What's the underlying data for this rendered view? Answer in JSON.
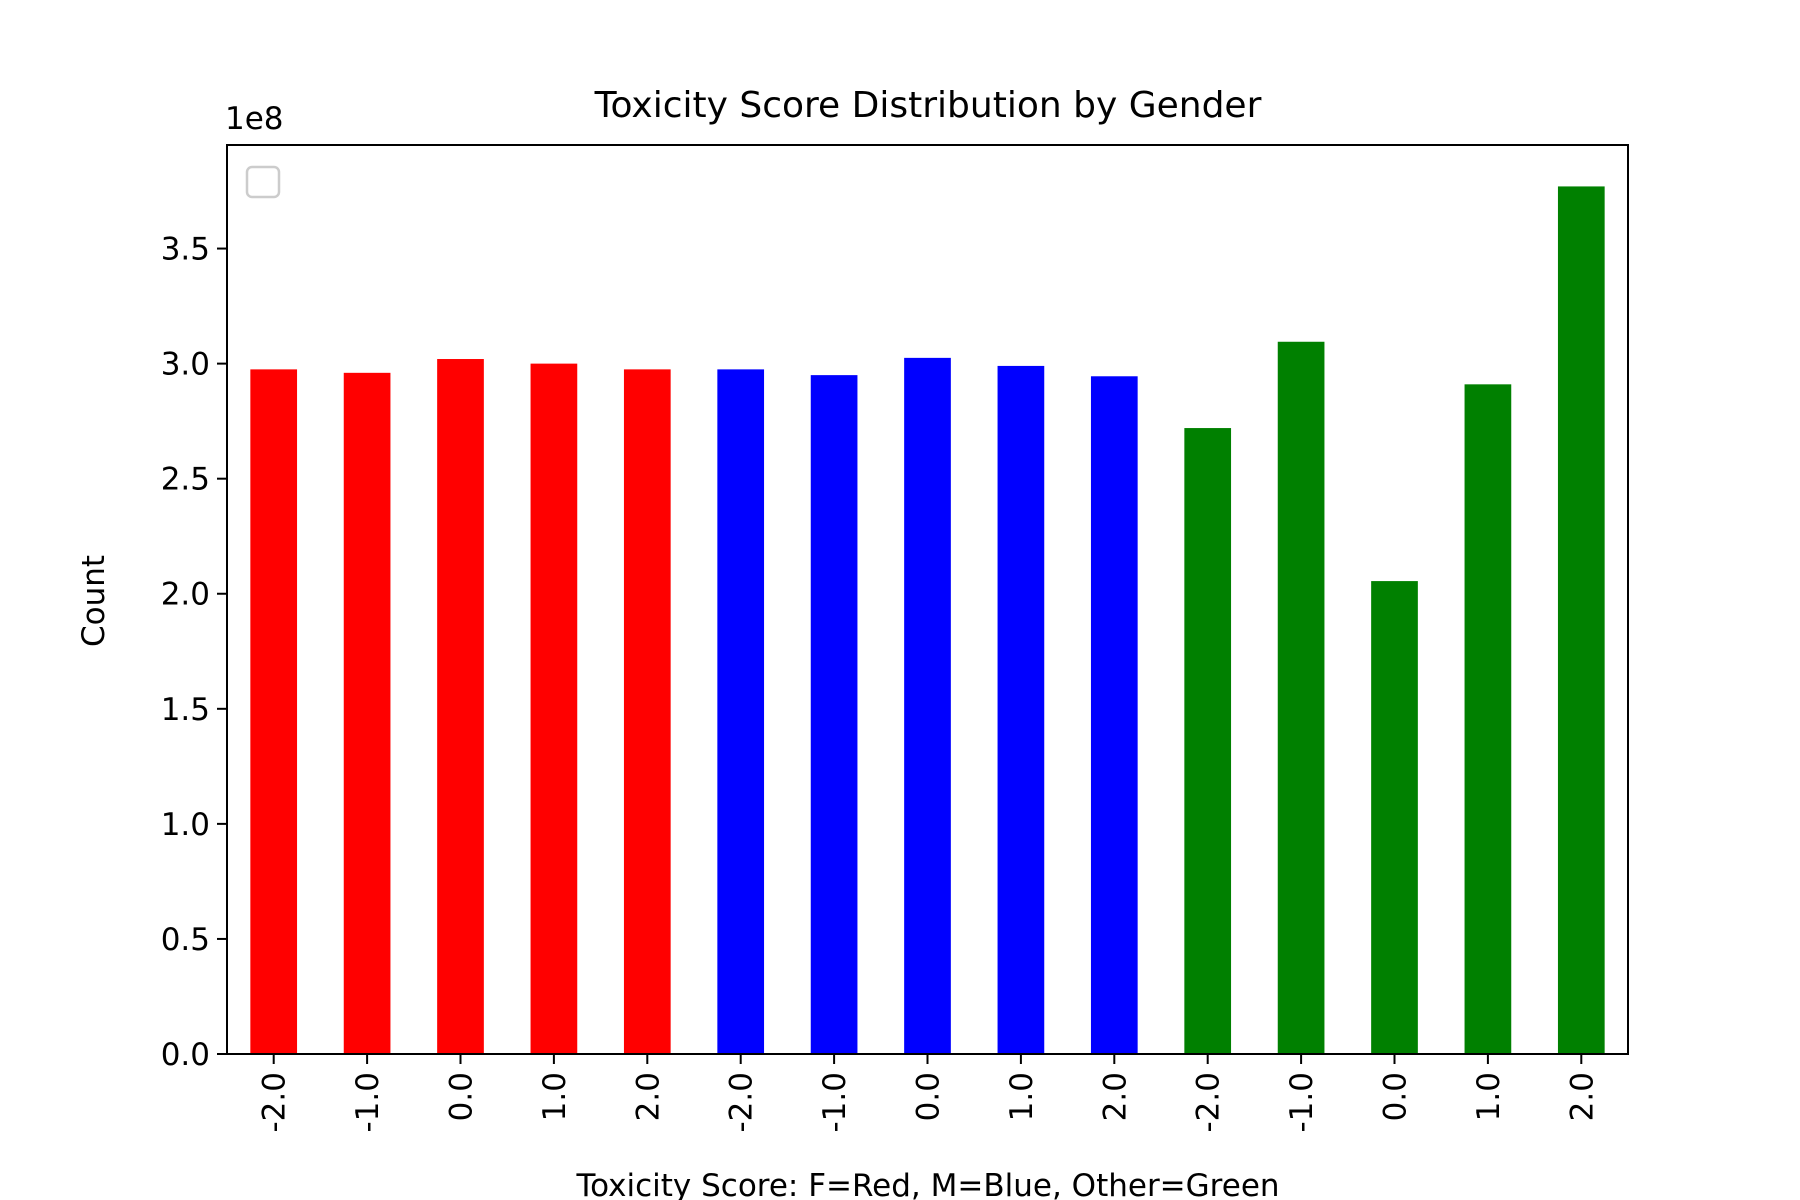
{
  "chart_data": {
    "type": "bar",
    "title": "Toxicity Score Distribution by Gender",
    "xlabel": "Toxicity Score: F=Red, M=Blue, Other=Green",
    "ylabel": "Count",
    "y_multiplier_label": "1e8",
    "ylim": [
      0,
      3.95
    ],
    "y_ticks": [
      0.0,
      0.5,
      1.0,
      1.5,
      2.0,
      2.5,
      3.0,
      3.5
    ],
    "y_tick_labels": [
      "0.0",
      "0.5",
      "1.0",
      "1.5",
      "2.0",
      "2.5",
      "3.0",
      "3.5"
    ],
    "categories": [
      "-2.0",
      "-1.0",
      "0.0",
      "1.0",
      "2.0",
      "-2.0",
      "-1.0",
      "0.0",
      "1.0",
      "2.0",
      "-2.0",
      "-1.0",
      "0.0",
      "1.0",
      "2.0"
    ],
    "values": [
      2.975,
      2.96,
      3.02,
      3.0,
      2.975,
      2.975,
      2.95,
      3.025,
      2.99,
      2.945,
      2.72,
      3.095,
      2.055,
      2.91,
      3.77
    ],
    "bar_colors": [
      "#ff0000",
      "#ff0000",
      "#ff0000",
      "#ff0000",
      "#ff0000",
      "#0000ff",
      "#0000ff",
      "#0000ff",
      "#0000ff",
      "#0000ff",
      "#008000",
      "#008000",
      "#008000",
      "#008000",
      "#008000"
    ],
    "grid": false,
    "legend": {
      "placement": "top-left",
      "entries": []
    }
  }
}
